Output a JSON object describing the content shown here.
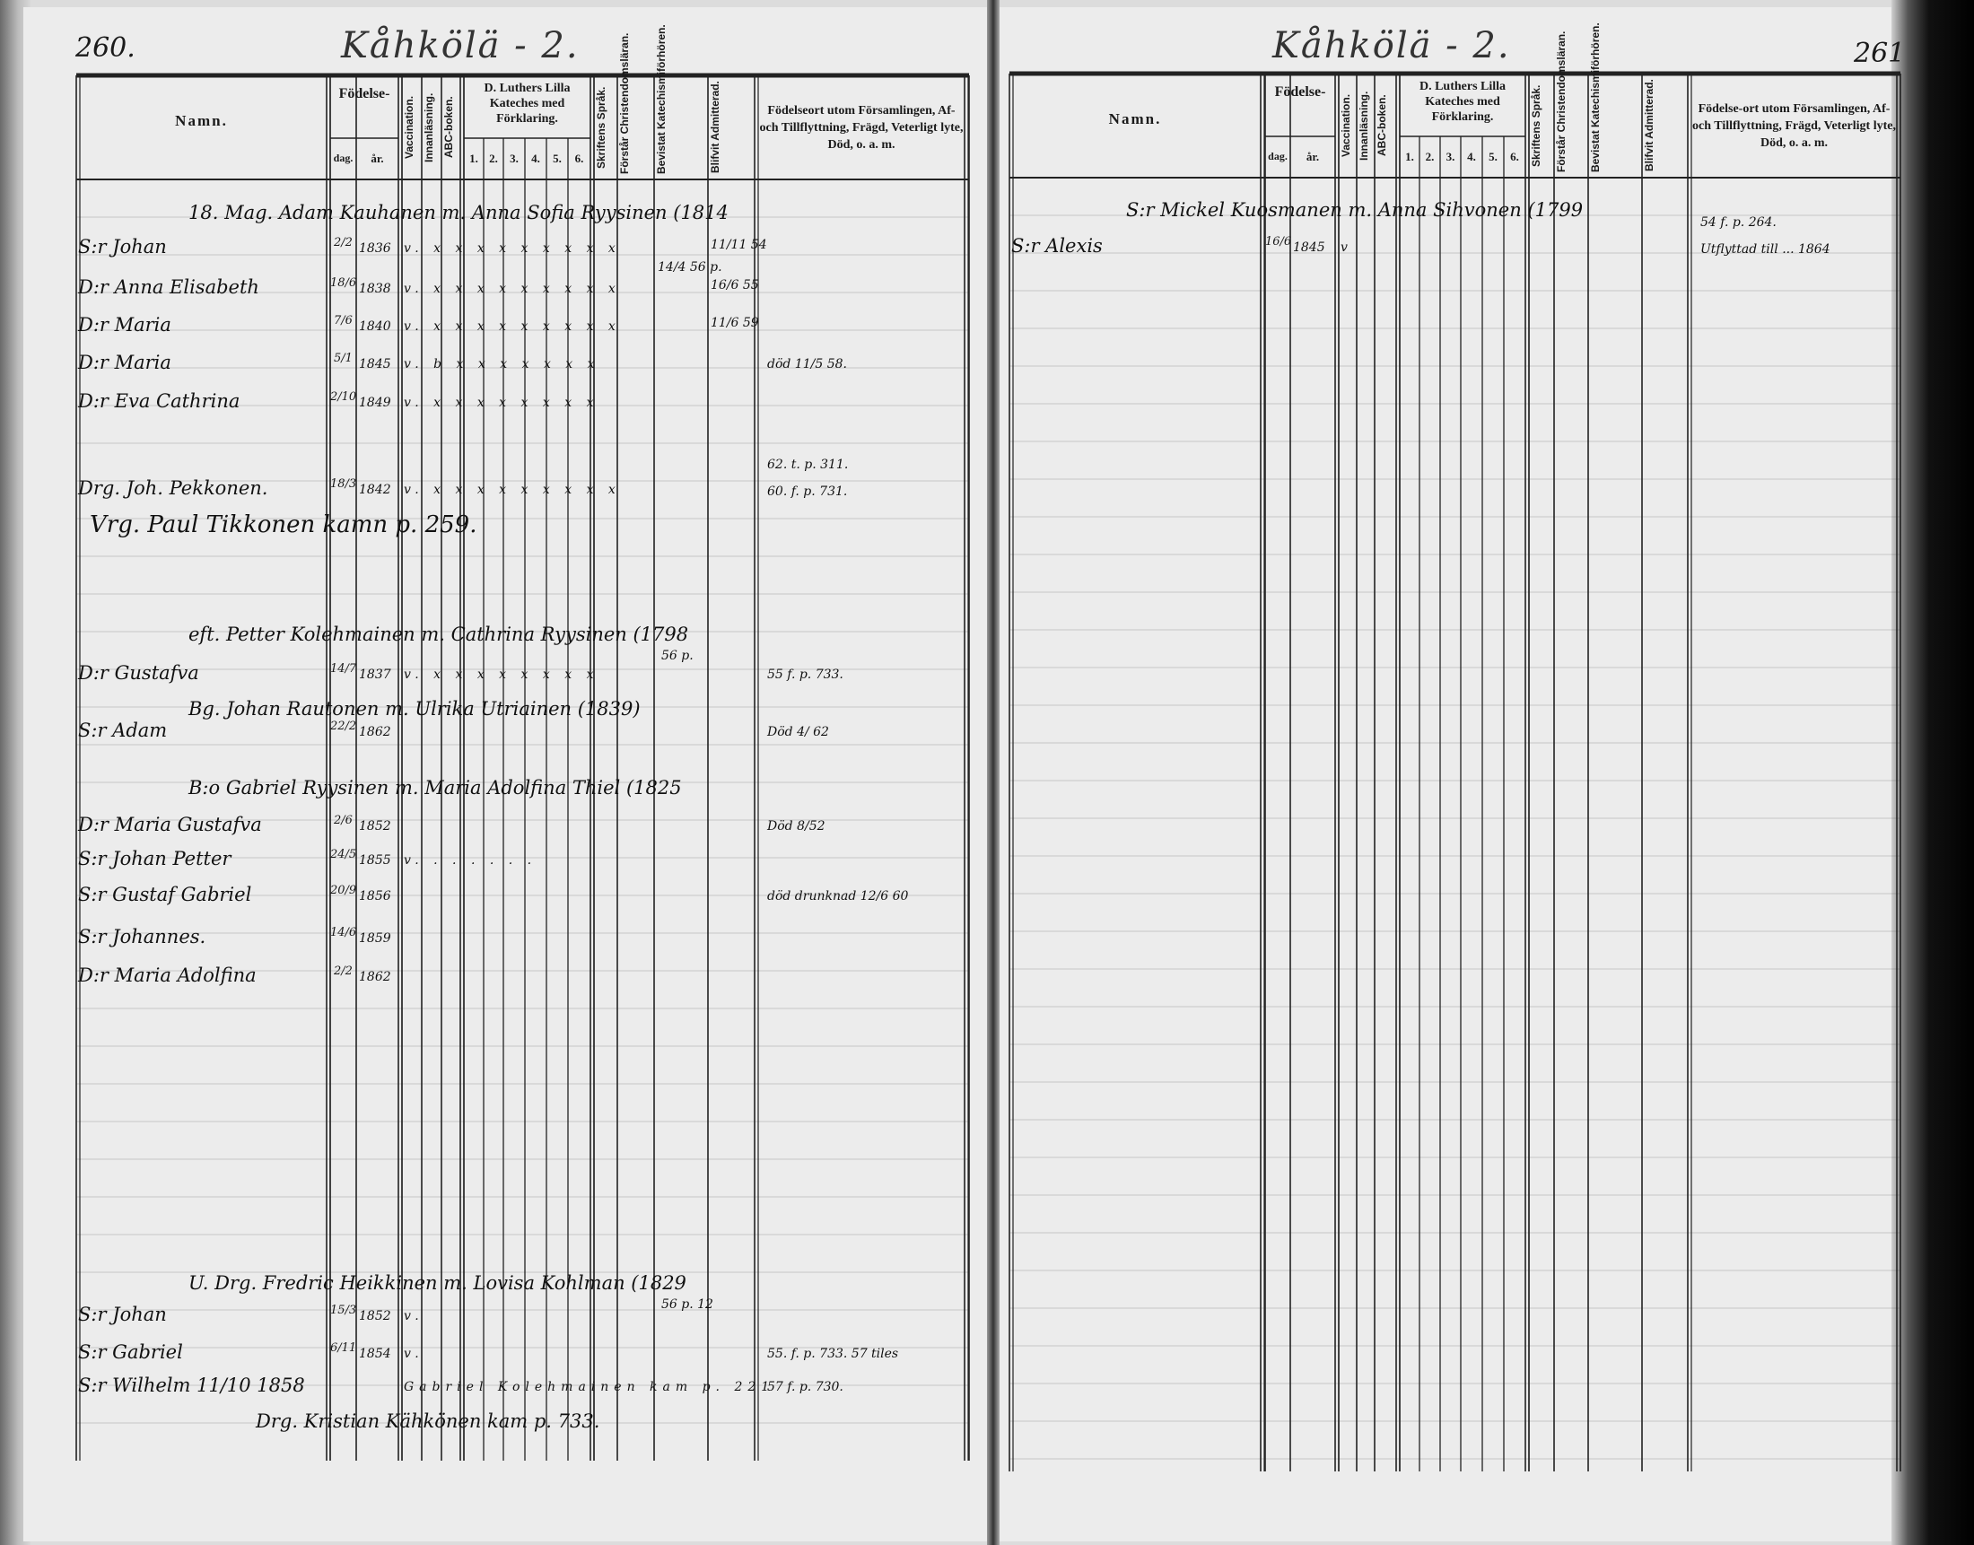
{
  "left_page": {
    "page_number": "260.",
    "title": "Kåhkölä - 2.",
    "headers": {
      "namn": "Namn.",
      "fodelse": "Födelse-",
      "dag": "dag.",
      "ar": "år.",
      "vaccination": "Vaccination.",
      "innanlasning": "Innanläsning.",
      "abc": "ABC-boken.",
      "luther": "D. Luthers Lilla Kateches med Förklaring.",
      "luther_nums": [
        "1.",
        "2.",
        "3.",
        "4.",
        "5.",
        "6."
      ],
      "skriftens": "Skriftens Språk.",
      "forstar": "Förstår Christendomsläran.",
      "bevistat": "Bevistat Katechismiförhören.",
      "blifvit": "Blifvit Admitterad.",
      "fodelseort": "Födelseort utom Församlingen, Af- och Tillflyttning, Frägd, Veterligt lyte, Död, o. a. m."
    },
    "rows": [
      {
        "type": "family",
        "text": "18. Mag. Adam Kauhanen m. Anna Sofia Ryysinen (1814"
      },
      {
        "type": "person",
        "name": "S:r Johan",
        "dag": "2/2",
        "year": "1836",
        "marks": "v. x x x x x x x x x",
        "admit": "11/11 54"
      },
      {
        "type": "person",
        "name": "D:r Anna Elisabeth",
        "dag": "18/6",
        "year": "1838",
        "marks": "v. x x x x x x x x x",
        "bevistat": "14/4 56 p.",
        "admit": "16/6 55"
      },
      {
        "type": "person",
        "name": "D:r Maria",
        "dag": "7/6",
        "year": "1840",
        "marks": "v. x x x x x x x x x",
        "admit": "11/6 59"
      },
      {
        "type": "person",
        "name": "D:r Maria",
        "dag": "5/1",
        "year": "1845",
        "marks": "v. b x x x x x x x",
        "ort": "död 11/5 58."
      },
      {
        "type": "person",
        "name": "D:r Eva Cathrina",
        "dag": "2/10",
        "year": "1849",
        "marks": "v. x x x x x x x x"
      },
      {
        "type": "person",
        "name": "Drg. Joh. Pekkonen.",
        "dag": "18/3",
        "year": "1842",
        "marks": "v. x x x x x x x x x",
        "ort": "62. t. p. 311.",
        "ort2": "60. f. p. 731."
      },
      {
        "type": "note",
        "text": "Vrg. Paul Tikkonen kamn p. 259."
      },
      {
        "type": "family",
        "text": "eft. Petter Kolehmainen m. Cathrina Ryysinen (1798",
        "bevistat": "56 p."
      },
      {
        "type": "person",
        "name": "D:r Gustafva",
        "dag": "14/7",
        "year": "1837",
        "marks": "v. x x x x x x x x",
        "ort": "55 f. p. 733."
      },
      {
        "type": "family",
        "text": "Bg. Johan Rautonen m. Ulrika Utriainen (1839)"
      },
      {
        "type": "person",
        "name": "S:r Adam",
        "dag": "22/2",
        "year": "1862",
        "ort": "Död 4/ 62"
      },
      {
        "type": "family",
        "text": "B:o Gabriel Ryysinen m. Maria Adolfina Thiel (1825"
      },
      {
        "type": "person",
        "name": "D:r Maria Gustafva",
        "dag": "2/6",
        "year": "1852",
        "ort": "Död 8/52"
      },
      {
        "type": "person",
        "name": "S:r Johan Petter",
        "dag": "24/5",
        "year": "1855",
        "marks": "v. . . . . . ."
      },
      {
        "type": "person",
        "name": "S:r Gustaf Gabriel",
        "dag": "20/9",
        "year": "1856",
        "ort": "död drunknad 12/6 60"
      },
      {
        "type": "person",
        "name": "S:r Johannes.",
        "dag": "14/6",
        "year": "1859"
      },
      {
        "type": "person",
        "name": "D:r Maria Adolfina",
        "dag": "2/2",
        "year": "1862"
      },
      {
        "type": "family",
        "text": "U. Drg. Fredric Heikkinen m. Lovisa Kohlman (1829",
        "bevistat": "56 p. 12"
      },
      {
        "type": "person",
        "name": "S:r Johan",
        "dag": "15/3",
        "year": "1852",
        "marks": "v."
      },
      {
        "type": "person",
        "name": "S:r Gabriel",
        "dag": "6/11",
        "year": "1854",
        "marks": "v.",
        "ort": "55. f. p. 733. 57 tiles"
      },
      {
        "type": "person",
        "name": "S:r Wilhelm 11/10 1858",
        "marks": "Gabriel Kolehmainen kam p. 221",
        "ort": "57 f. p. 730."
      },
      {
        "type": "note",
        "text": "Drg. Kristian Kähkönen kam p. 733."
      }
    ]
  },
  "right_page": {
    "page_number": "261",
    "title": "Kåhkölä - 2.",
    "headers": {
      "namn": "Namn.",
      "fodelse": "Födelse-",
      "dag": "dag.",
      "ar": "år.",
      "vaccination": "Vaccination.",
      "innanlasning": "Innanläsning.",
      "abc": "ABC-boken.",
      "luther": "D. Luthers Lilla Kateches med Förklaring.",
      "luther_nums": [
        "1.",
        "2.",
        "3.",
        "4.",
        "5.",
        "6."
      ],
      "skriftens": "Skriftens Språk.",
      "forstar": "Förstår Christendomsläran.",
      "bevistat": "Bevistat Katechismiförhören.",
      "blifvit": "Blifvit Admitterad.",
      "fodelseort": "Födelse-ort utom Församlingen, Af- och Tillflyttning, Frägd, Veterligt lyte, Död, o. a. m."
    },
    "rows": [
      {
        "type": "family",
        "text": "S:r Mickel Kuosmanen m. Anna Sihvonen (1799"
      },
      {
        "type": "person",
        "name": "S:r Alexis",
        "dag": "16/6",
        "year": "1845",
        "marks": "v",
        "ort": "54 f. p. 264.",
        "ort2": "Utflyttad till ... 1864"
      }
    ]
  },
  "colors": {
    "paper": "#ececec",
    "ink": "#1a1a1a",
    "binding": "#000000"
  }
}
